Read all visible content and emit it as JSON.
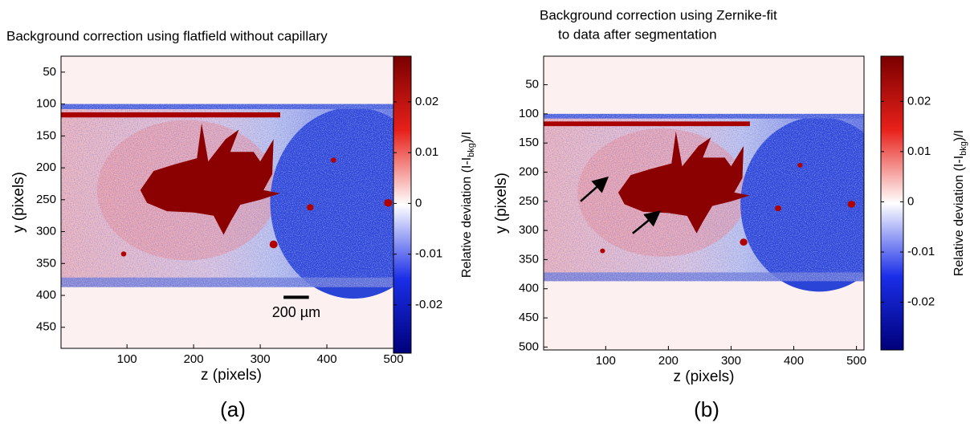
{
  "chart_data": [
    {
      "type": "heatmap",
      "title": [
        "Background correction using flatfield without capillary"
      ],
      "xlabel": "z (pixels)",
      "ylabel": "y (pixels)",
      "xlim": [
        1,
        512
      ],
      "xticks": [
        100,
        200,
        300,
        400,
        500
      ],
      "ylim": [
        25,
        483
      ],
      "yticks": [
        50,
        100,
        150,
        200,
        250,
        300,
        350,
        400,
        450
      ],
      "y_reversed": true,
      "colorbar": {
        "label": [
          "Relative deviation (I-I",
          "bkg",
          ")/I"
        ],
        "lim": [
          -0.0295,
          0.029
        ],
        "ticks": [
          -0.02,
          -0.01,
          0,
          0.01,
          0.02
        ],
        "colors": [
          "#00007a",
          "#1a2ee8",
          "#ffffff",
          "#e8201a",
          "#7a0000"
        ]
      },
      "annotation": "200 µm",
      "panel_label": "(a)"
    },
    {
      "type": "heatmap",
      "title": [
        "Background correction using Zernike-fit",
        "to data after segmentation"
      ],
      "xlabel": "z (pixels)",
      "ylabel": "y (pixels)",
      "xlim": [
        1,
        512
      ],
      "xticks": [
        100,
        200,
        300,
        400,
        500
      ],
      "ylim": [
        1,
        505
      ],
      "yticks": [
        50,
        100,
        150,
        200,
        250,
        300,
        350,
        400,
        450,
        500
      ],
      "y_reversed": true,
      "colorbar": {
        "label": [
          "Relative deviation (I-I",
          "bkg",
          ")/I"
        ],
        "lim": [
          -0.0295,
          0.029
        ],
        "ticks": [
          -0.02,
          -0.01,
          0,
          0.01,
          0.02
        ],
        "colors": [
          "#00007a",
          "#1a2ee8",
          "#ffffff",
          "#e8201a",
          "#7a0000"
        ]
      },
      "panel_label": "(b)"
    }
  ]
}
